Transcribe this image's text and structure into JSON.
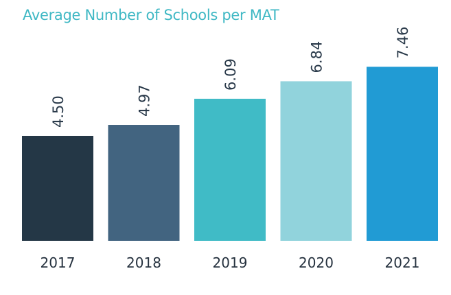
{
  "chart_data": {
    "type": "bar",
    "title": "Average Number of Schools per MAT",
    "categories": [
      "2017",
      "2018",
      "2019",
      "2020",
      "2021"
    ],
    "values": [
      4.5,
      4.97,
      6.09,
      6.84,
      7.46
    ],
    "data_labels": [
      "4.50",
      "4.97",
      "6.09",
      "6.84",
      "7.46"
    ],
    "colors": [
      "#243746",
      "#426480",
      "#40bbc6",
      "#91d3dc",
      "#219bd4"
    ],
    "xlabel": "",
    "ylabel": "",
    "ylim": [
      0,
      8
    ],
    "grid": false,
    "legend": "none"
  }
}
